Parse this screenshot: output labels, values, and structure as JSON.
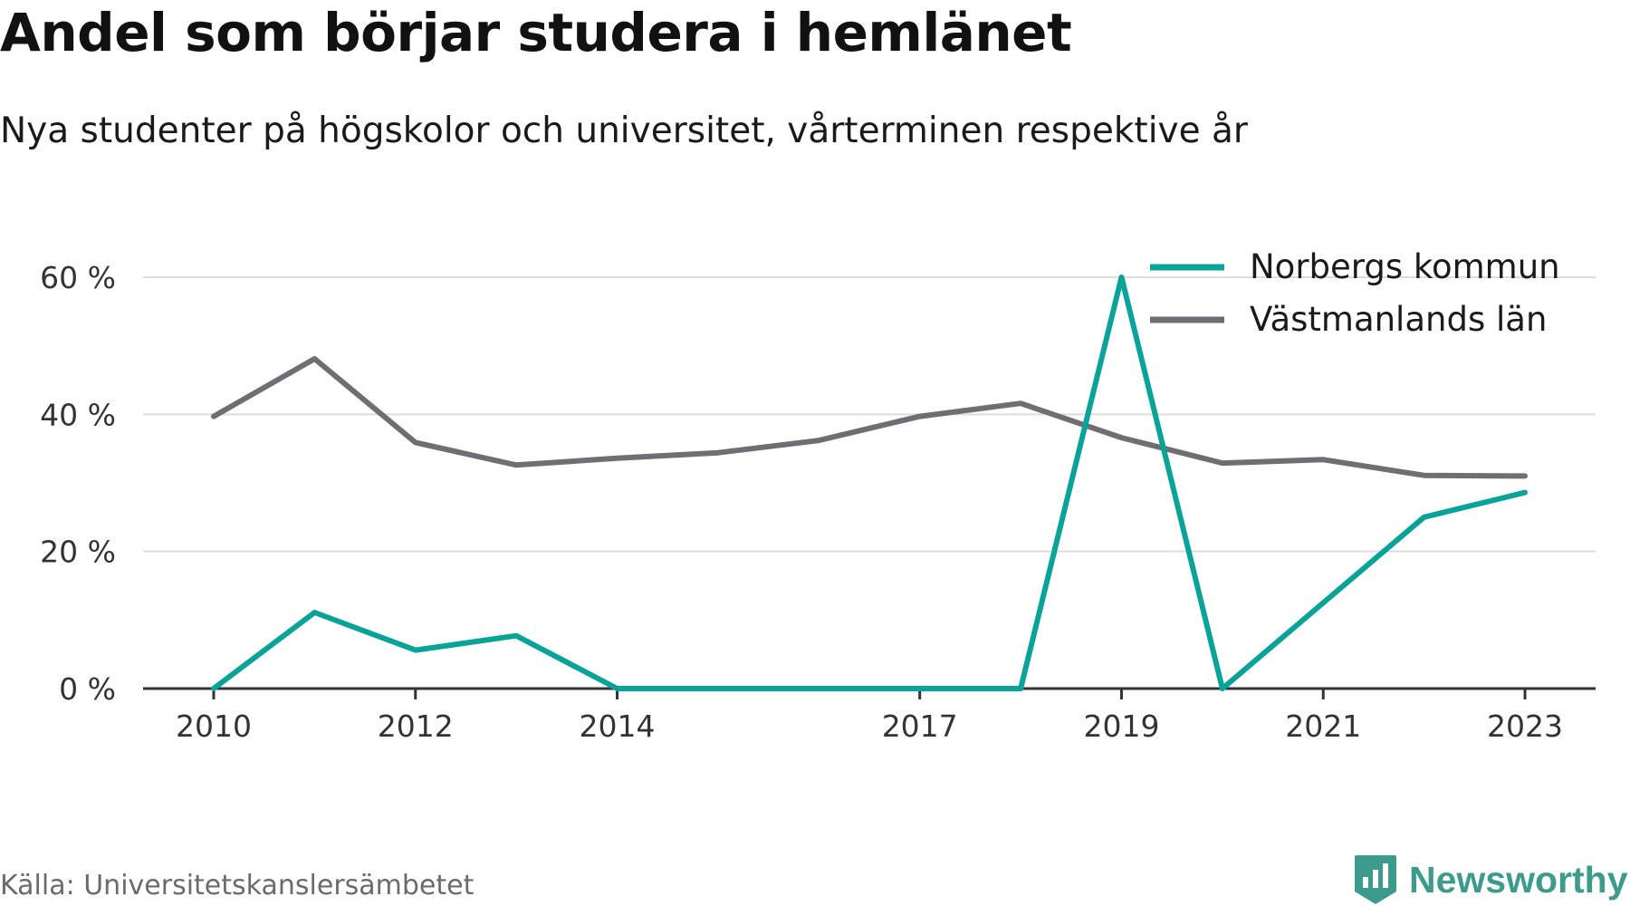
{
  "header": {
    "title": "Andel som börjar studera i hemlänet",
    "subtitle": "Nya studenter på högskolor och universitet, vårterminen respektive år"
  },
  "chart_data": {
    "type": "line",
    "title": "Andel som börjar studera i hemlänet",
    "subtitle": "Nya studenter på högskolor och universitet, vårterminen respektive år",
    "x": [
      2010,
      2011,
      2012,
      2013,
      2014,
      2015,
      2016,
      2017,
      2018,
      2019,
      2020,
      2021,
      2022,
      2023
    ],
    "x_ticks": [
      2010,
      2012,
      2014,
      2017,
      2019,
      2021,
      2023
    ],
    "xlim": [
      2009.3,
      2023.7
    ],
    "y_ticks": [
      0,
      20,
      40,
      60
    ],
    "y_tick_labels": [
      "0 %",
      "20 %",
      "40 %",
      "60 %"
    ],
    "ylim": [
      0,
      60
    ],
    "grid": true,
    "legend_position": "top-right",
    "series": [
      {
        "name": "Norbergs kommun",
        "color": "#0aa39a",
        "values": [
          0,
          11.1,
          5.6,
          7.7,
          0,
          0,
          0,
          0,
          0,
          60,
          0,
          12.5,
          25,
          28.6
        ]
      },
      {
        "name": "Västmanlands län",
        "color": "#6e6e73",
        "values": [
          39.7,
          48.1,
          35.9,
          32.6,
          33.6,
          34.4,
          36.2,
          39.7,
          41.6,
          36.6,
          32.9,
          33.4,
          31.1,
          31
        ]
      }
    ],
    "colors": {
      "grid": "#dddddd",
      "axis": "#333333",
      "tick_text": "#333333"
    }
  },
  "footer": {
    "source": "Källa: Universitetskanslersämbetet",
    "brand": "Newsworthy",
    "brand_icon": "newsworthy-logo-icon",
    "brand_color": "#3c9b8c"
  }
}
